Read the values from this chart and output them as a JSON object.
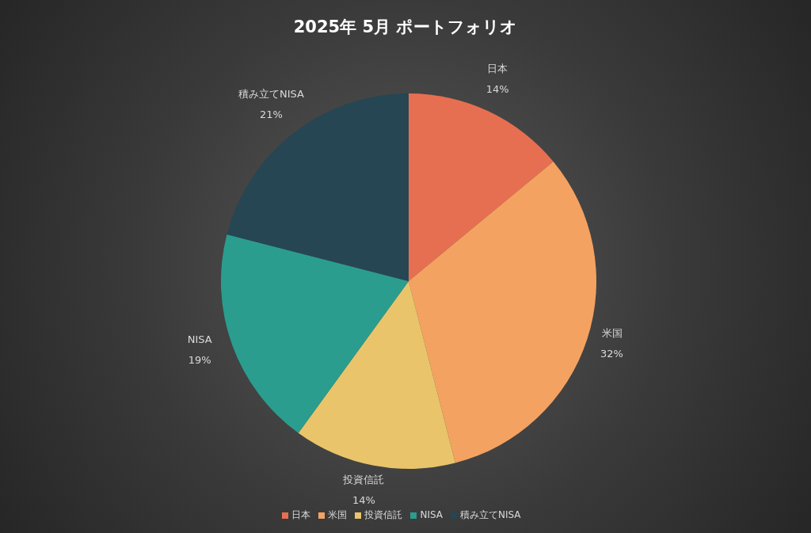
{
  "chart_data": {
    "type": "pie",
    "title": "2025年 5月 ポートフォリオ",
    "categories": [
      "日本",
      "米国",
      "投資信託",
      "NISA",
      "積み立てNISA"
    ],
    "values": [
      14,
      32,
      14,
      19,
      21
    ],
    "colors": [
      "#e76f51",
      "#f4a261",
      "#e9c46a",
      "#2a9d8f",
      "#264653"
    ],
    "value_labels": [
      "14%",
      "32%",
      "14%",
      "19%",
      "21%"
    ],
    "legend": "bottom"
  }
}
